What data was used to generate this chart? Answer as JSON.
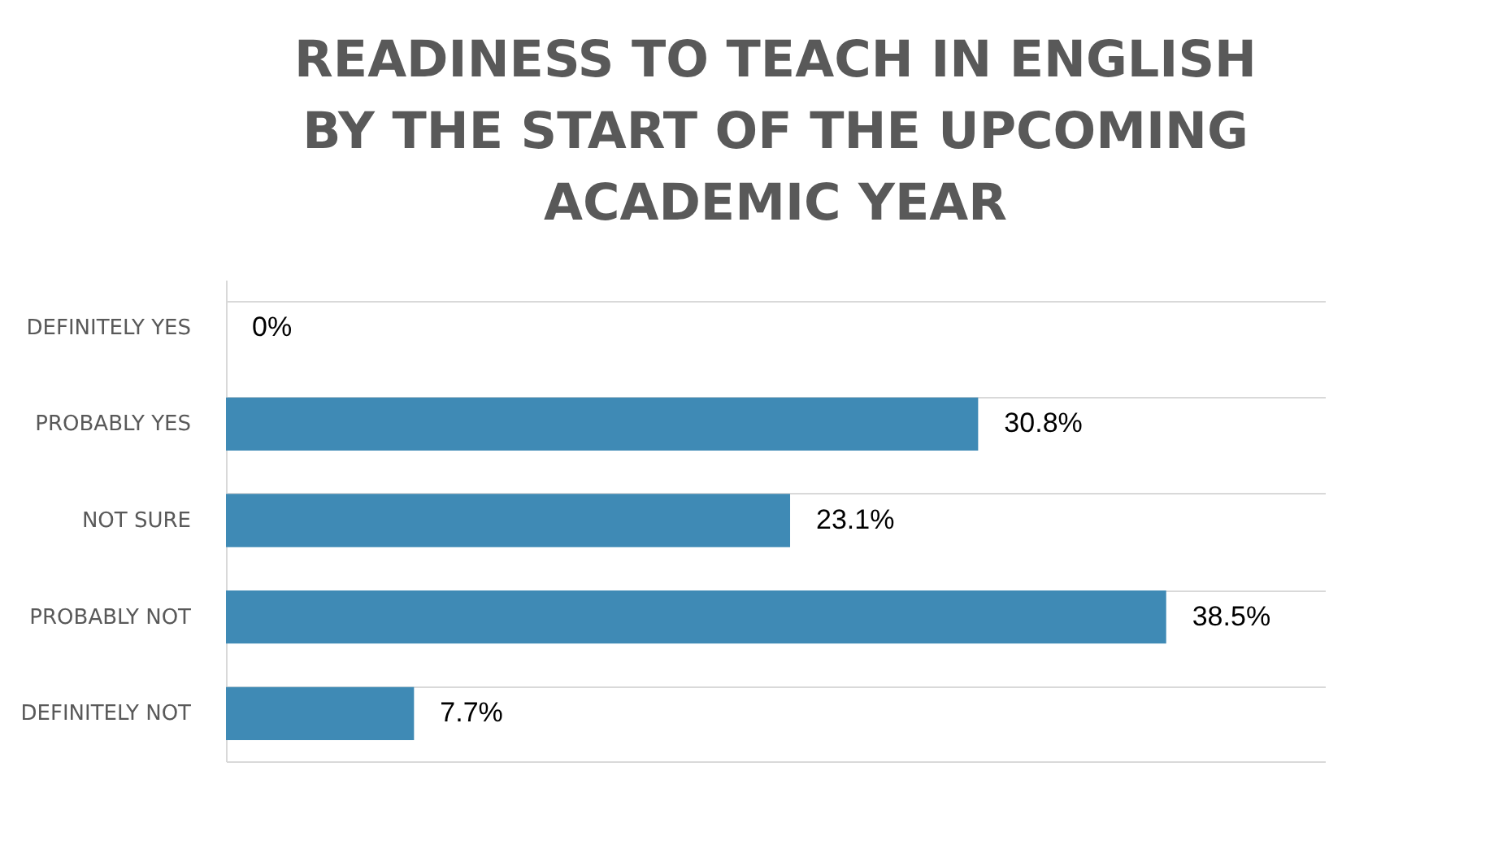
{
  "chart_data": {
    "type": "bar",
    "orientation": "horizontal",
    "title": "READINESS TO TEACH IN ENGLISH BY THE START OF THE UPCOMING ACADEMIC YEAR",
    "categories": [
      "DEFINITELY YES",
      "PROBABLY YES",
      "NOT SURE",
      "PROBABLY NOT",
      "DEFINITELY NOT"
    ],
    "values": [
      0,
      30.8,
      23.1,
      38.5,
      7.7
    ],
    "value_labels": [
      "0%",
      "30.8%",
      "23.1%",
      "38.5%",
      "7.7%"
    ],
    "color": "#3f8ab5",
    "xlim": [
      0,
      45
    ],
    "grid": "y"
  }
}
